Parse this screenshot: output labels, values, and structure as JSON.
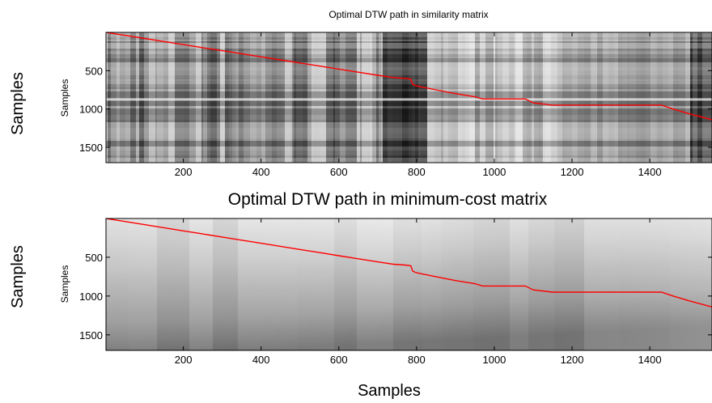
{
  "chart_data": [
    {
      "type": "heatmap",
      "title": "Optimal DTW path in similarity matrix",
      "xlabel": "",
      "ylabel": "Samples",
      "outer_ylabel": "Samples",
      "xlim": [
        1,
        1560
      ],
      "ylim": [
        1,
        1700
      ],
      "y_inverted": true,
      "xticks": [
        200,
        400,
        600,
        800,
        1000,
        1200,
        1400
      ],
      "yticks": [
        500,
        1000,
        1500
      ],
      "colormap": "gray",
      "path_color": "#ff0000",
      "series": [
        {
          "x": [
            1,
            50,
            100,
            150,
            200,
            250,
            300,
            350,
            400,
            450,
            500,
            550,
            600,
            650,
            700,
            740,
            770,
            785,
            790,
            800,
            850,
            900,
            950,
            970,
            1000,
            1050,
            1080,
            1100,
            1150,
            1200,
            1300,
            1400,
            1430,
            1460,
            1500,
            1560
          ],
          "y": [
            1,
            40,
            80,
            120,
            160,
            200,
            240,
            280,
            320,
            360,
            400,
            440,
            480,
            520,
            560,
            590,
            600,
            610,
            680,
            700,
            750,
            800,
            840,
            870,
            870,
            870,
            870,
            920,
            950,
            950,
            950,
            950,
            950,
            1000,
            1060,
            1140
          ]
        }
      ]
    },
    {
      "type": "heatmap",
      "title": "Optimal DTW path in minimum-cost matrix",
      "xlabel": "Samples",
      "ylabel": "Samples",
      "outer_ylabel": "Samples",
      "xlim": [
        1,
        1560
      ],
      "ylim": [
        1,
        1700
      ],
      "y_inverted": true,
      "xticks": [
        200,
        400,
        600,
        800,
        1000,
        1200,
        1400
      ],
      "yticks": [
        500,
        1000,
        1500
      ],
      "colormap": "gray",
      "path_color": "#ff0000",
      "series": [
        {
          "x": [
            1,
            50,
            100,
            150,
            200,
            250,
            300,
            350,
            400,
            450,
            500,
            550,
            600,
            650,
            700,
            740,
            770,
            785,
            790,
            800,
            850,
            900,
            950,
            970,
            1000,
            1050,
            1080,
            1100,
            1150,
            1200,
            1300,
            1400,
            1430,
            1460,
            1500,
            1560
          ],
          "y": [
            1,
            40,
            80,
            120,
            160,
            200,
            240,
            280,
            320,
            360,
            400,
            440,
            480,
            520,
            560,
            590,
            600,
            610,
            680,
            700,
            750,
            800,
            840,
            870,
            870,
            870,
            870,
            920,
            950,
            950,
            950,
            950,
            950,
            1000,
            1060,
            1140
          ]
        }
      ]
    }
  ]
}
